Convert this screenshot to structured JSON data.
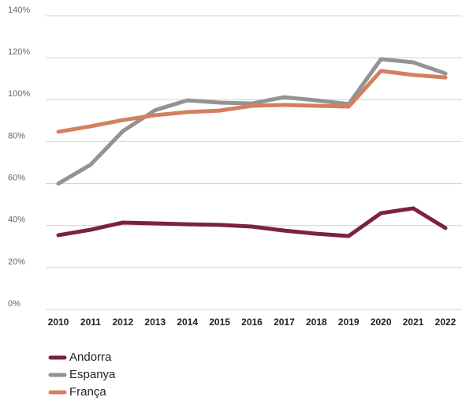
{
  "chart_data": {
    "type": "line",
    "categories": [
      "2010",
      "2011",
      "2012",
      "2013",
      "2014",
      "2015",
      "2016",
      "2017",
      "2018",
      "2019",
      "2020",
      "2021",
      "2022"
    ],
    "series": [
      {
        "name": "Andorra",
        "color": "#7a2341",
        "values": [
          35.4,
          38,
          41.4,
          41,
          40.6,
          40.3,
          39.5,
          37.6,
          36.1,
          35,
          45.9,
          48.2,
          38.8
        ]
      },
      {
        "name": "Espanya",
        "color": "#939393",
        "values": [
          60,
          69,
          85,
          95,
          99.7,
          98.6,
          98.2,
          101.2,
          99.7,
          97.9,
          119.3,
          117.8,
          112.5
        ]
      },
      {
        "name": "França",
        "color": "#d47f5f",
        "values": [
          84.7,
          87.3,
          90.3,
          92.6,
          94.1,
          94.8,
          97.1,
          97.5,
          97.1,
          96.7,
          113.7,
          111.8,
          110.6
        ]
      }
    ],
    "ylim": [
      0,
      140
    ],
    "yticks": [
      {
        "value": 0,
        "label": "0%"
      },
      {
        "value": 20,
        "label": "20%"
      },
      {
        "value": 40,
        "label": "40%"
      },
      {
        "value": 60,
        "label": "60%"
      },
      {
        "value": 80,
        "label": "80%"
      },
      {
        "value": 100,
        "label": "100%"
      },
      {
        "value": 120,
        "label": "120%"
      },
      {
        "value": 140,
        "label": "140%"
      }
    ],
    "grid": true
  }
}
